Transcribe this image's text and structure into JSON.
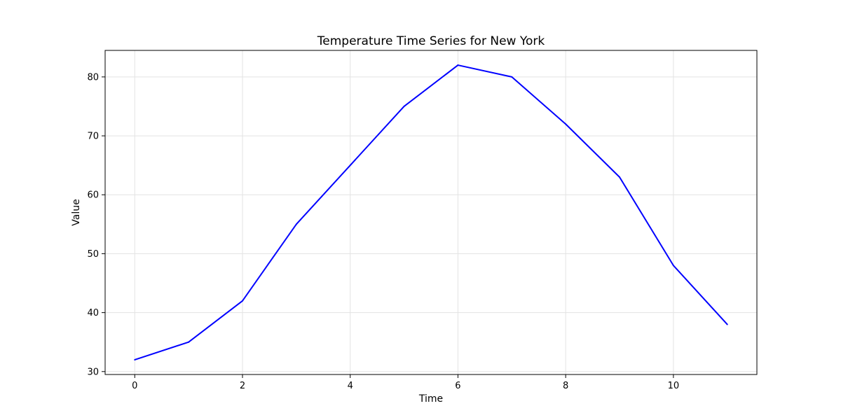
{
  "chart_data": {
    "type": "line",
    "title": "Temperature Time Series for New York",
    "xlabel": "Time",
    "ylabel": "Value",
    "xlim": [
      -0.55,
      11.55
    ],
    "ylim": [
      29.5,
      84.5
    ],
    "xticks": [
      0,
      2,
      4,
      6,
      8,
      10
    ],
    "yticks": [
      30,
      40,
      50,
      60,
      70,
      80
    ],
    "grid": true,
    "legend": "none",
    "series": [
      {
        "color": "#0000ff",
        "x": [
          0,
          1,
          2,
          3,
          4,
          5,
          6,
          7,
          8,
          9,
          10,
          11
        ],
        "values": [
          32,
          35,
          42,
          55,
          65,
          75,
          82,
          80,
          72,
          63,
          48,
          38
        ]
      }
    ]
  }
}
